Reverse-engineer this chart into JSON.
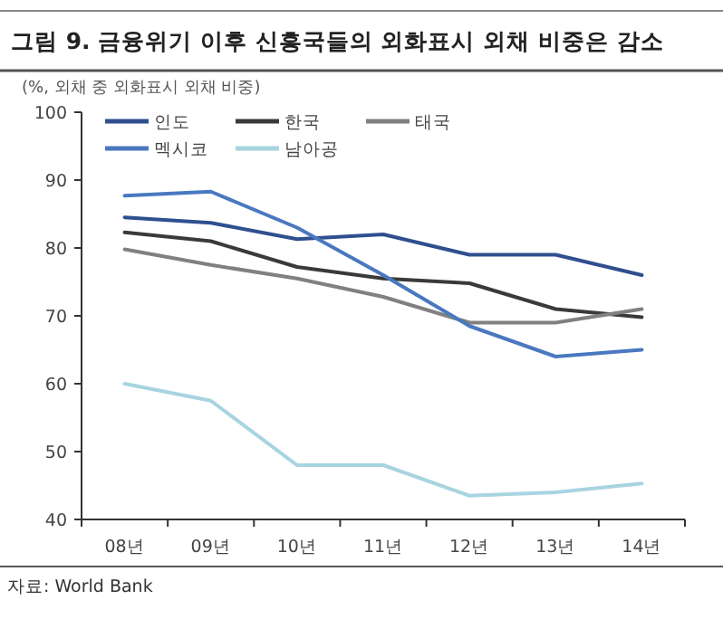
{
  "chart_data": {
    "type": "line",
    "title": "그림 9. 금융위기 이후 신흥국들의 외화표시 외채 비중은 감소",
    "ylabel": "(%, 외채 중 외화표시 외채 비중)",
    "annotations": [
      "자료: World Bank"
    ],
    "categories": [
      "08년",
      "09년",
      "10년",
      "11년",
      "12년",
      "13년",
      "14년"
    ],
    "ylim": [
      40,
      100
    ],
    "yticks": [
      40,
      50,
      60,
      70,
      80,
      90,
      100
    ],
    "grid": false,
    "legend": "top",
    "marker": "none",
    "line_style": "solid",
    "series": [
      {
        "name": "인도",
        "color": "#2f4f8f",
        "values": [
          84.5,
          83.7,
          81.3,
          82,
          79,
          79,
          76
        ]
      },
      {
        "name": "한국",
        "color": "#3a3a3a",
        "values": [
          82.3,
          81,
          77.2,
          75.5,
          74.8,
          71,
          69.8
        ]
      },
      {
        "name": "태국",
        "color": "#808080",
        "values": [
          79.8,
          77.5,
          75.5,
          72.8,
          69,
          69,
          71
        ]
      },
      {
        "name": "멕시코",
        "color": "#4a78c0",
        "values": [
          87.7,
          88.3,
          83,
          76,
          68.5,
          64,
          65
        ]
      },
      {
        "name": "남아공",
        "color": "#a8d4e0",
        "values": [
          60,
          57.5,
          48,
          48,
          43.5,
          44,
          45.3
        ]
      }
    ]
  }
}
